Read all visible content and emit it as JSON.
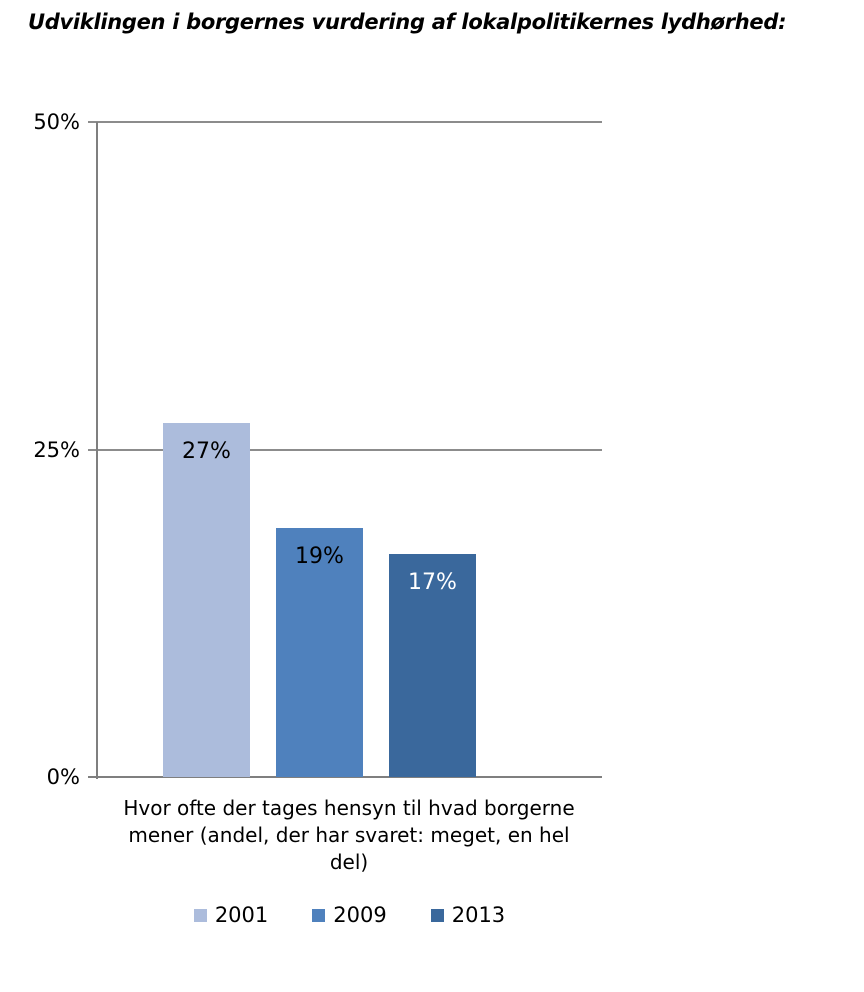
{
  "title": "Udviklingen i borgernes vurdering af lokalpolitikernes lydhørhed:",
  "chart_data": {
    "type": "bar",
    "title": "Udviklingen i borgernes vurdering af lokalpolitikernes lydhørhed:",
    "categories": [
      "Hvor ofte der tages hensyn til hvad borgerne mener (andel, der har svaret: meget, en hel del)"
    ],
    "series": [
      {
        "name": "2001",
        "values": [
          27
        ],
        "data_label": "27%",
        "color": "#ACBCDC",
        "label_color": "#000000"
      },
      {
        "name": "2009",
        "values": [
          19
        ],
        "data_label": "19%",
        "color": "#4F81BD",
        "label_color": "#000000"
      },
      {
        "name": "2013",
        "values": [
          17
        ],
        "data_label": "17%",
        "color": "#3A689C",
        "label_color": "#FFFFFF"
      }
    ],
    "xlabel": "",
    "ylabel": "",
    "ylim": [
      0,
      50
    ],
    "yticks": [
      {
        "label": "0%",
        "value": 0
      },
      {
        "label": "25%",
        "value": 25
      },
      {
        "label": "50%",
        "value": 50
      }
    ],
    "grid": true,
    "legend_position": "bottom",
    "colors": {
      "grid": "#8C8C8C",
      "axis": "#7F7F7F",
      "background": "#FFFFFF"
    }
  }
}
